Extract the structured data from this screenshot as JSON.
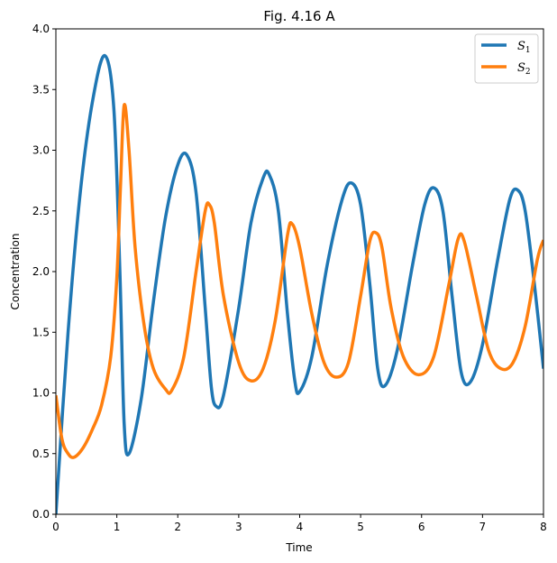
{
  "chart_data": {
    "type": "line",
    "title": "Fig. 4.16 A",
    "xlabel": "Time",
    "ylabel": "Concentration",
    "xlim": [
      0,
      8
    ],
    "ylim": [
      0,
      4
    ],
    "xticks": [
      "0",
      "1",
      "2",
      "3",
      "4",
      "5",
      "6",
      "7",
      "8"
    ],
    "yticks": [
      "0.0",
      "0.5",
      "1.0",
      "1.5",
      "2.0",
      "2.5",
      "3.0",
      "3.5",
      "4.0"
    ],
    "grid": false,
    "legend_position": "top-right",
    "series": [
      {
        "name": "S1",
        "legend_base": "S",
        "legend_sub": "1",
        "color": "#1f77b4",
        "x": [
          0.0,
          0.2,
          0.4,
          0.6,
          0.8,
          0.95,
          1.05,
          1.12,
          1.2,
          1.4,
          1.6,
          1.8,
          2.0,
          2.15,
          2.3,
          2.45,
          2.55,
          2.63,
          2.75,
          3.0,
          3.2,
          3.4,
          3.5,
          3.65,
          3.8,
          3.92,
          4.0,
          4.2,
          4.45,
          4.7,
          4.85,
          5.0,
          5.15,
          5.28,
          5.4,
          5.6,
          5.85,
          6.05,
          6.2,
          6.35,
          6.5,
          6.65,
          6.8,
          7.0,
          7.25,
          7.45,
          7.58,
          7.7,
          7.85,
          8.0
        ],
        "values": [
          0.0,
          1.5,
          2.65,
          3.4,
          3.78,
          3.35,
          2.0,
          0.75,
          0.5,
          0.95,
          1.75,
          2.45,
          2.88,
          2.96,
          2.65,
          1.7,
          1.05,
          0.89,
          0.98,
          1.7,
          2.4,
          2.77,
          2.8,
          2.5,
          1.65,
          1.1,
          1.01,
          1.3,
          2.05,
          2.6,
          2.73,
          2.55,
          1.9,
          1.2,
          1.06,
          1.35,
          2.05,
          2.55,
          2.69,
          2.5,
          1.8,
          1.17,
          1.09,
          1.4,
          2.1,
          2.6,
          2.67,
          2.5,
          1.9,
          1.2
        ]
      },
      {
        "name": "S2",
        "legend_base": "S",
        "legend_sub": "2",
        "color": "#ff7f0e",
        "x": [
          0.0,
          0.1,
          0.2,
          0.3,
          0.45,
          0.6,
          0.75,
          0.9,
          1.0,
          1.06,
          1.12,
          1.2,
          1.3,
          1.45,
          1.6,
          1.8,
          1.9,
          2.1,
          2.3,
          2.45,
          2.52,
          2.6,
          2.75,
          3.0,
          3.2,
          3.4,
          3.6,
          3.8,
          3.88,
          4.0,
          4.2,
          4.4,
          4.6,
          4.8,
          5.0,
          5.15,
          5.25,
          5.35,
          5.5,
          5.7,
          5.95,
          6.2,
          6.45,
          6.6,
          6.7,
          6.9,
          7.1,
          7.3,
          7.5,
          7.7,
          7.9,
          8.0
        ],
        "values": [
          0.98,
          0.62,
          0.5,
          0.47,
          0.55,
          0.7,
          0.9,
          1.3,
          1.95,
          2.7,
          3.37,
          3.0,
          2.2,
          1.55,
          1.2,
          1.03,
          1.02,
          1.3,
          2.0,
          2.5,
          2.55,
          2.4,
          1.8,
          1.25,
          1.1,
          1.2,
          1.6,
          2.3,
          2.39,
          2.2,
          1.65,
          1.25,
          1.13,
          1.25,
          1.8,
          2.25,
          2.32,
          2.2,
          1.7,
          1.3,
          1.15,
          1.3,
          1.9,
          2.27,
          2.25,
          1.8,
          1.35,
          1.2,
          1.25,
          1.55,
          2.1,
          2.26
        ]
      }
    ]
  }
}
